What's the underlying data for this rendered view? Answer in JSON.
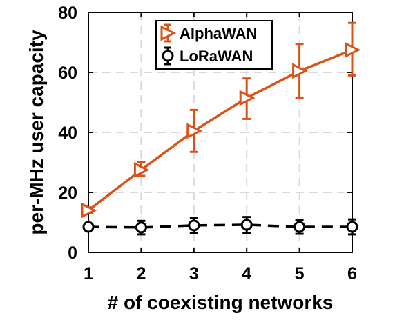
{
  "chart_data": {
    "type": "line",
    "xlabel": "# of coexisting networks",
    "ylabel": "per-MHz user capacity",
    "x": [
      1,
      2,
      3,
      4,
      5,
      6
    ],
    "xlim": [
      1,
      6
    ],
    "ylim": [
      0,
      80
    ],
    "x_ticks": [
      "1",
      "2",
      "3",
      "4",
      "5",
      "6"
    ],
    "y_ticks": [
      "0",
      "20",
      "40",
      "60",
      "80"
    ],
    "grid": true,
    "legend_position": "top-center",
    "series": [
      {
        "name": "AlphaWAN",
        "color": "#d95319",
        "marker": "triangle-right",
        "line_style": "solid",
        "values": [
          14,
          27.5,
          40.5,
          51.5,
          60.5,
          67.5
        ],
        "error_low": [
          13,
          25.5,
          33.5,
          44.5,
          51.5,
          59
        ],
        "error_high": [
          15,
          30,
          47.5,
          58,
          69.5,
          76.5
        ]
      },
      {
        "name": "LoRaWAN",
        "color": "#000000",
        "marker": "circle",
        "line_style": "dashed",
        "values": [
          8.5,
          8.3,
          9,
          9.2,
          8.5,
          8.5
        ],
        "error_low": [
          7.5,
          6,
          6.5,
          6.5,
          6.2,
          6
        ],
        "error_high": [
          9.5,
          10.5,
          11.5,
          11.8,
          10.8,
          11
        ]
      }
    ]
  }
}
